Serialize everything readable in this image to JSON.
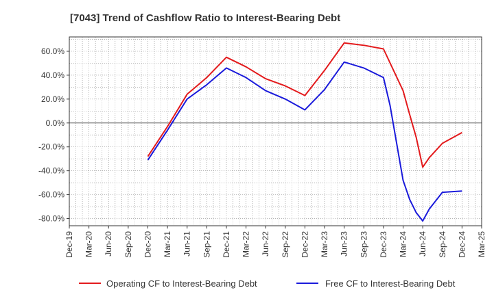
{
  "chart_data": {
    "type": "line",
    "title": "[7043]  Trend of Cashflow Ratio to Interest-Bearing Debt",
    "xlabel": "",
    "ylabel": "",
    "x_ticks": [
      "Dec-19",
      "Mar-20",
      "Jun-20",
      "Sep-20",
      "Dec-20",
      "Mar-21",
      "Jun-21",
      "Sep-21",
      "Dec-21",
      "Mar-22",
      "Jun-22",
      "Sep-22",
      "Dec-22",
      "Mar-23",
      "Jun-23",
      "Sep-23",
      "Dec-23",
      "Mar-24",
      "Jun-24",
      "Sep-24",
      "Dec-24",
      "Mar-25"
    ],
    "y_ticks": [
      "60.0%",
      "40.0%",
      "20.0%",
      "0.0%",
      "-20.0%",
      "-40.0%",
      "-60.0%",
      "-80.0%"
    ],
    "ylim": [
      -86,
      72
    ],
    "grid": true,
    "legend_position": "bottom",
    "series": [
      {
        "name": "Operating CF to Interest-Bearing Debt",
        "color": "#e31a1c",
        "points": [
          [
            "Dec-20",
            -28
          ],
          [
            "Mar-21",
            -3
          ],
          [
            "Jun-21",
            24
          ],
          [
            "Sep-21",
            38
          ],
          [
            "Dec-21",
            55
          ],
          [
            "Mar-22",
            47
          ],
          [
            "Jun-22",
            37
          ],
          [
            "Sep-22",
            31
          ],
          [
            "Dec-22",
            23
          ],
          [
            "Mar-23",
            44
          ],
          [
            "Jun-23",
            67
          ],
          [
            "Sep-23",
            65
          ],
          [
            "Dec-23",
            62
          ],
          [
            "Mar-24",
            27
          ],
          [
            "Apr-24",
            7
          ],
          [
            "May-24",
            -12
          ],
          [
            "Jun-24",
            -37
          ],
          [
            "Jul-24",
            -29
          ],
          [
            "Sep-24",
            -17
          ],
          [
            "Dec-24",
            -8
          ]
        ]
      },
      {
        "name": "Free CF to Interest-Bearing Debt",
        "color": "#1a1adb",
        "points": [
          [
            "Dec-20",
            -31
          ],
          [
            "Mar-21",
            -6
          ],
          [
            "Jun-21",
            20
          ],
          [
            "Sep-21",
            32
          ],
          [
            "Dec-21",
            46
          ],
          [
            "Mar-22",
            38
          ],
          [
            "Jun-22",
            27
          ],
          [
            "Sep-22",
            20
          ],
          [
            "Dec-22",
            11
          ],
          [
            "Mar-23",
            28
          ],
          [
            "Jun-23",
            51
          ],
          [
            "Sep-23",
            46
          ],
          [
            "Dec-23",
            38
          ],
          [
            "Jan-24",
            15
          ],
          [
            "Mar-24",
            -48
          ],
          [
            "Apr-24",
            -64
          ],
          [
            "May-24",
            -75
          ],
          [
            "Jun-24",
            -82
          ],
          [
            "Jul-24",
            -72
          ],
          [
            "Sep-24",
            -58
          ],
          [
            "Dec-24",
            -57
          ]
        ]
      }
    ]
  }
}
